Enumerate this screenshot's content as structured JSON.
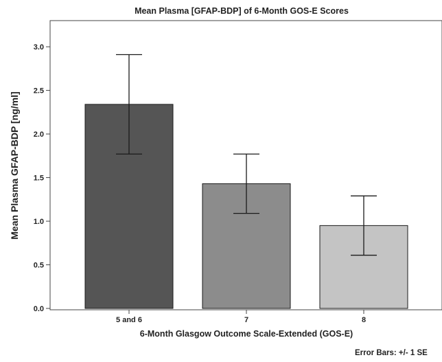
{
  "chart_data": {
    "type": "bar",
    "title": "Mean Plasma [GFAP-BDP] of 6-Month GOS-E Scores",
    "xlabel": "6-Month Glasgow Outcome Scale-Extended (GOS-E)",
    "ylabel": "Mean Plasma GFAP-BDP [ng/ml]",
    "categories": [
      "5 and 6",
      "7",
      "8"
    ],
    "values": [
      2.34,
      1.43,
      0.95
    ],
    "error_low": [
      1.77,
      1.09,
      0.61
    ],
    "error_high": [
      2.91,
      1.77,
      1.29
    ],
    "bar_colors": [
      "#555555",
      "#8c8c8c",
      "#c4c4c4"
    ],
    "ylim": [
      0,
      3.3
    ],
    "yticks": [
      "0.0",
      "0.5",
      "1.0",
      "1.5",
      "2.0",
      "2.5",
      "3.0"
    ],
    "ytick_values": [
      0,
      0.5,
      1.0,
      1.5,
      2.0,
      2.5,
      3.0
    ],
    "grid": false,
    "error_bar_note": "Error Bars: +/- 1 SE"
  }
}
